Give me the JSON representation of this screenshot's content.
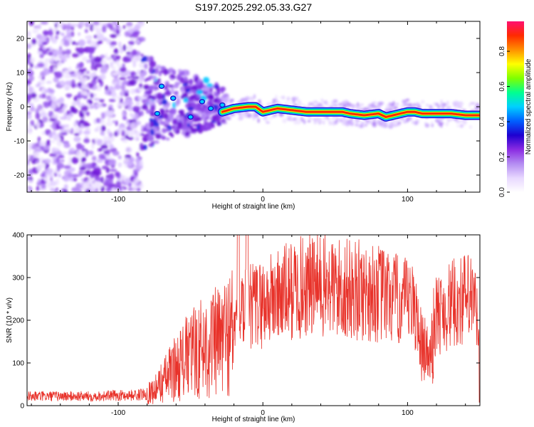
{
  "title": "S197.2025.292.05.33.G27",
  "chart_data": [
    {
      "type": "heatmap",
      "name": "spectrogram",
      "xlabel": "Height of straight line (km)",
      "ylabel": "Frequency (Hz)",
      "xlim": [
        -163,
        150
      ],
      "ylim": [
        -25,
        25
      ],
      "x_ticks": [
        -100,
        0,
        100
      ],
      "y_ticks": [
        -20,
        -10,
        0,
        10,
        20
      ],
      "colorbar": {
        "label": "Normalized spectral amplitude",
        "range": [
          0,
          0.97
        ],
        "ticks": [
          0.0,
          0.2,
          0.4,
          0.6,
          0.8
        ],
        "colors": [
          "#ffffff",
          "#e8d8ff",
          "#b48cf2",
          "#8a2be2",
          "#1e00d0",
          "#0060ff",
          "#00d0ff",
          "#00ff90",
          "#7fff00",
          "#ffff00",
          "#ff9000",
          "#ff2a00",
          "#ff1070"
        ]
      },
      "ridge": {
        "x": [
          -28,
          -20,
          -10,
          -5,
          0,
          10,
          20,
          30,
          40,
          50,
          55,
          60,
          70,
          80,
          85,
          90,
          95,
          100,
          105,
          110,
          115,
          120,
          130,
          140,
          150
        ],
        "freq": [
          -1.5,
          -0.5,
          0,
          0,
          -1.5,
          -0.5,
          -1,
          -1.5,
          -1.5,
          -1.5,
          -1.5,
          -2,
          -2.5,
          -2,
          -3,
          -2.5,
          -2,
          -1.5,
          -1.5,
          -2,
          -2,
          -2,
          -2,
          -2.5,
          -2.5
        ]
      }
    },
    {
      "type": "line",
      "name": "snr",
      "xlabel": "Height of straight line (km)",
      "ylabel": "SNR (10 * v/v)",
      "xlim": [
        -163,
        150
      ],
      "ylim": [
        0,
        400
      ],
      "x_ticks": [
        -100,
        0,
        100
      ],
      "y_ticks": [
        0,
        100,
        200,
        300,
        400
      ],
      "color": "#e8322a",
      "envelope": {
        "x": [
          -163,
          -120,
          -85,
          -80,
          -75,
          -70,
          -60,
          -50,
          -40,
          -30,
          -22,
          -18,
          -15,
          -10,
          -5,
          0,
          10,
          20,
          30,
          40,
          50,
          60,
          70,
          80,
          90,
          100,
          105,
          110,
          115,
          120,
          130,
          140,
          145,
          148,
          150
        ],
        "y": [
          22,
          22,
          25,
          30,
          35,
          55,
          90,
          120,
          140,
          150,
          175,
          195,
          215,
          230,
          235,
          240,
          255,
          270,
          280,
          280,
          275,
          270,
          268,
          262,
          250,
          238,
          225,
          200,
          180,
          210,
          235,
          250,
          245,
          210,
          120
        ]
      },
      "spikes": [
        {
          "x": -17,
          "y": 400
        },
        {
          "x": -11,
          "y": 400
        }
      ]
    }
  ]
}
